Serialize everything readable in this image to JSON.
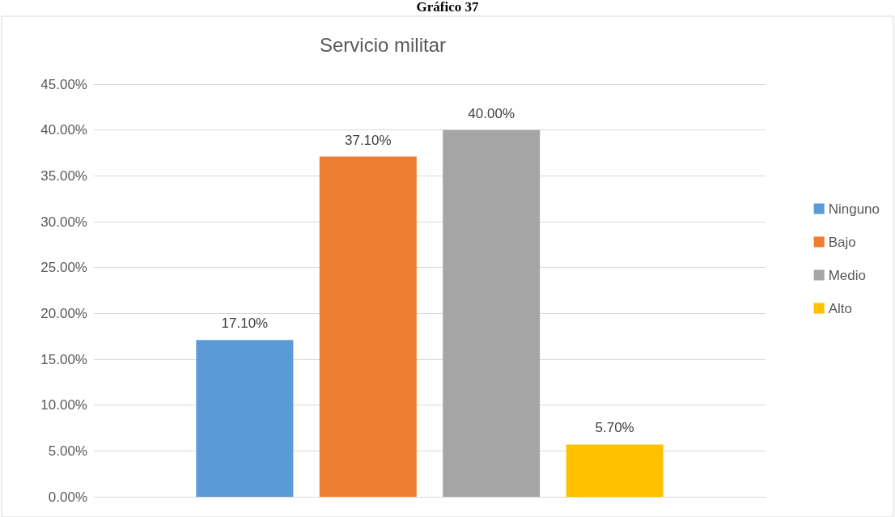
{
  "chart_data": {
    "type": "bar",
    "title": "Servicio militar",
    "annotations": [
      "Gráfico 37"
    ],
    "categories": [
      null
    ],
    "series": [
      {
        "name": "Ninguno",
        "color": "#5b9bd5",
        "values": [
          17.1
        ],
        "value_labels": [
          "17.10%"
        ]
      },
      {
        "name": "Bajo",
        "color": "#ed7d31",
        "values": [
          37.1
        ],
        "value_labels": [
          "37.10%"
        ]
      },
      {
        "name": "Medio",
        "color": "#a5a5a5",
        "values": [
          40.0
        ],
        "value_labels": [
          "40.00%"
        ]
      },
      {
        "name": "Alto",
        "color": "#ffc000",
        "values": [
          5.7
        ],
        "value_labels": [
          "5.70%"
        ]
      }
    ],
    "ylim": [
      0,
      45
    ],
    "yticks": [
      {
        "value": 0,
        "label": "0.00%"
      },
      {
        "value": 5,
        "label": "5.00%"
      },
      {
        "value": 10,
        "label": "10.00%"
      },
      {
        "value": 15,
        "label": "15.00%"
      },
      {
        "value": 20,
        "label": "20.00%"
      },
      {
        "value": 25,
        "label": "25.00%"
      },
      {
        "value": 30,
        "label": "30.00%"
      },
      {
        "value": 35,
        "label": "35.00%"
      },
      {
        "value": 40,
        "label": "40.00%"
      },
      {
        "value": 45,
        "label": "45.00%"
      }
    ],
    "grid": "y",
    "legend": "right"
  }
}
